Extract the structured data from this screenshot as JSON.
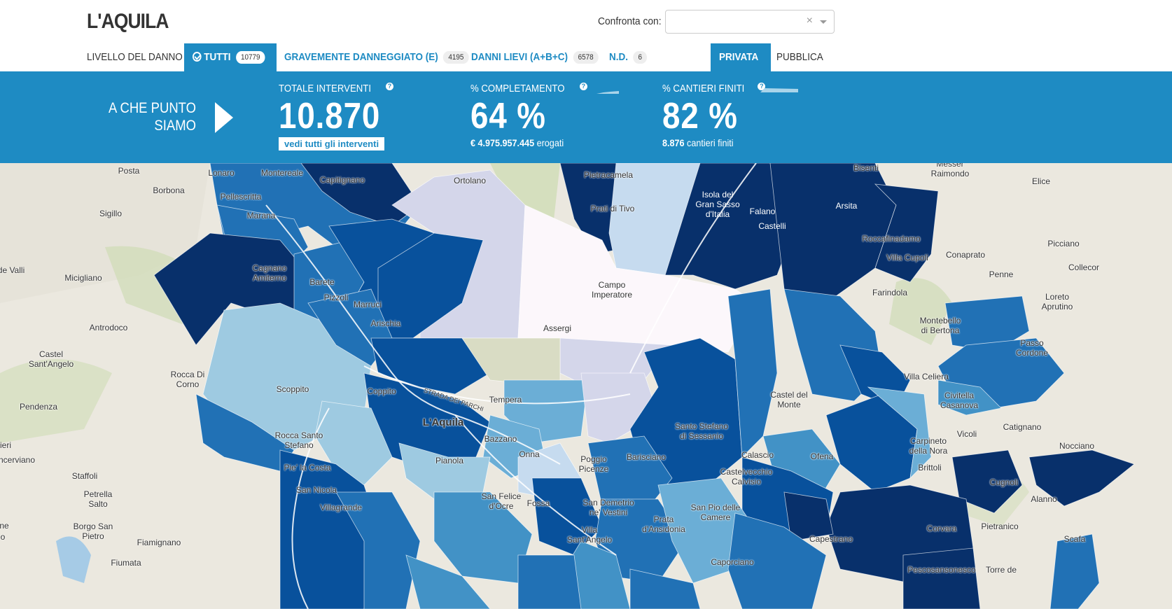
{
  "header": {
    "title": "L'AQUILA",
    "compare_label": "Confronta con:",
    "compare_clear": "×"
  },
  "tabs": {
    "level_label": "LIVELLO DEL DANNO",
    "all_label": "TUTTI",
    "all_count": "10779",
    "severe_label": "GRAVEMENTE DANNEGGIATO (E)",
    "severe_count": "4195",
    "light_label": "DANNI LIEVI (A+B+C)",
    "light_count": "6578",
    "nd_label": "N.D.",
    "nd_count": "6",
    "private_label": "PRIVATA",
    "public_label": "PUBBLICA"
  },
  "stats": {
    "where_line1": "A CHE PUNTO",
    "where_line2": "SIAMO",
    "total_label": "TOTALE INTERVENTI",
    "total_value": "10.870",
    "see_all": "vedi tutti gli interventi",
    "completion_label": "% COMPLETAMENTO",
    "completion_value": "64 %",
    "completion_amount": "€ 4.975.957.445",
    "completion_suffix": "erogati",
    "sites_label": "% CANTIERI FINITI",
    "sites_value": "82 %",
    "sites_count": "8.876",
    "sites_suffix": "cantieri finiti",
    "help": "?"
  },
  "colors": {
    "accent": "#1e8bc3",
    "darkest": "#08306b",
    "dark": "#08519c",
    "mid": "#2171b5",
    "midlight": "#4292c6",
    "light": "#6baed6",
    "lighter": "#9ecae1",
    "pale": "#c6dbef",
    "lilac": "#d4d6ea",
    "white": "#fcf7fb"
  },
  "map": {
    "places": {
      "posta": "Posta",
      "borbona": "Borbona",
      "sigillo": "Sigillo",
      "valli": "de Valli",
      "micigliano": "Micigliano",
      "antrodoco": "Antrodoco",
      "castel_santangelo": "Castel\nSant'Angelo",
      "rocca_corno": "Rocca Di\nCorno",
      "pendenza": "Pendenza",
      "ieri": "ieri",
      "ncerviano": "ncerviano",
      "staffoli": "Staffoli",
      "petrella": "Petrella\nSalto",
      "ne": "ne",
      "o": "o",
      "borgo_san_pietro": "Borgo San\nPietro",
      "fiamignano": "Fiamignano",
      "fiumata": "Fiumata",
      "lonaro": "Lonaro",
      "montereale": "Montereale",
      "capitignano": "Capitignano",
      "pellescritta": "Pellescritta",
      "marana": "Marana",
      "cagnano": "Cagnano\nAmiterno",
      "barete": "Barete",
      "pizzoli": "Pizzoli",
      "marruci": "Marruci",
      "arischia": "Arischia",
      "ortolano": "Ortolano",
      "pietracamela": "Pietracamela",
      "prati_tivo": "Prati di Tivo",
      "isola": "Isola del\nGran Sasso\nd'Italia",
      "bisenti": "Bisenti",
      "messer": "Messer\nRaimondo",
      "elice": "Elice",
      "arsita": "Arsita",
      "falano": "Falano",
      "castelli": "Castelli",
      "roccafinadamo": "Roccafinadamo",
      "picciano": "Picciano",
      "villa_cupoli": "Villa Cupoli",
      "conaprato": "Conaprato",
      "collecor": "Collecor",
      "penne": "Penne",
      "farindola": "Farindola",
      "loreto": "Loreto\nAprutino",
      "campo_imperatore": "Campo\nImperatore",
      "assergi": "Assergi",
      "montebello": "Montebello\ndi Bertona",
      "passo_cordone": "Passo\nCordone",
      "villa_celiera": "Villa Celiera",
      "civitella": "Civitella\nCasanova",
      "scoppito": "Scoppito",
      "coppito": "Coppito",
      "tempera": "Tempera",
      "laquila": "L'Aquila",
      "strada": "STRADA DEI PARCHI",
      "castel_monte": "Castel del\nMonte",
      "santo_stefano": "Santo Stefano\ndi Sessanio",
      "rocca_santo_stefano": "Rocca Santo\nStefano",
      "pie_la_costa": "Pie' la Costa",
      "bazzano": "Bazzano",
      "onna": "Onna",
      "pianola": "Pianola",
      "poggio": "Poggio\nPicenze",
      "barisciano": "Barisciano",
      "calascio": "Calascio",
      "ofena": "Ofena",
      "catignano": "Catignano",
      "nocciano": "Nocciano",
      "vicoli": "Vicoli",
      "carpineto": "Carpineto\ndella Nora",
      "brittoli": "Brittoli",
      "cugnoli": "Cugnoli",
      "alanno": "Alanno",
      "castelvecchio": "Castelvecchio\nCalvisio",
      "san_nicola": "San Nicola",
      "villagrande": "Villagrande",
      "san_felice": "San Felice\nd'Ocre",
      "fossa": "Fossa",
      "san_demetrio": "San Demetrio\nne' Vestini",
      "villa_santangelo": "Villa\nSant'Angelo",
      "prata": "Prata\nd'Ansidonia",
      "san_pio": "San Pio delle\nCamere",
      "capestrano": "Capestrano",
      "corvara": "Corvara",
      "pietranico": "Pietranico",
      "scafa": "Scafa",
      "caporciano": "Caporciano",
      "pescosansonesco": "Pescosansonesco",
      "torre_de": "Torre de"
    }
  }
}
